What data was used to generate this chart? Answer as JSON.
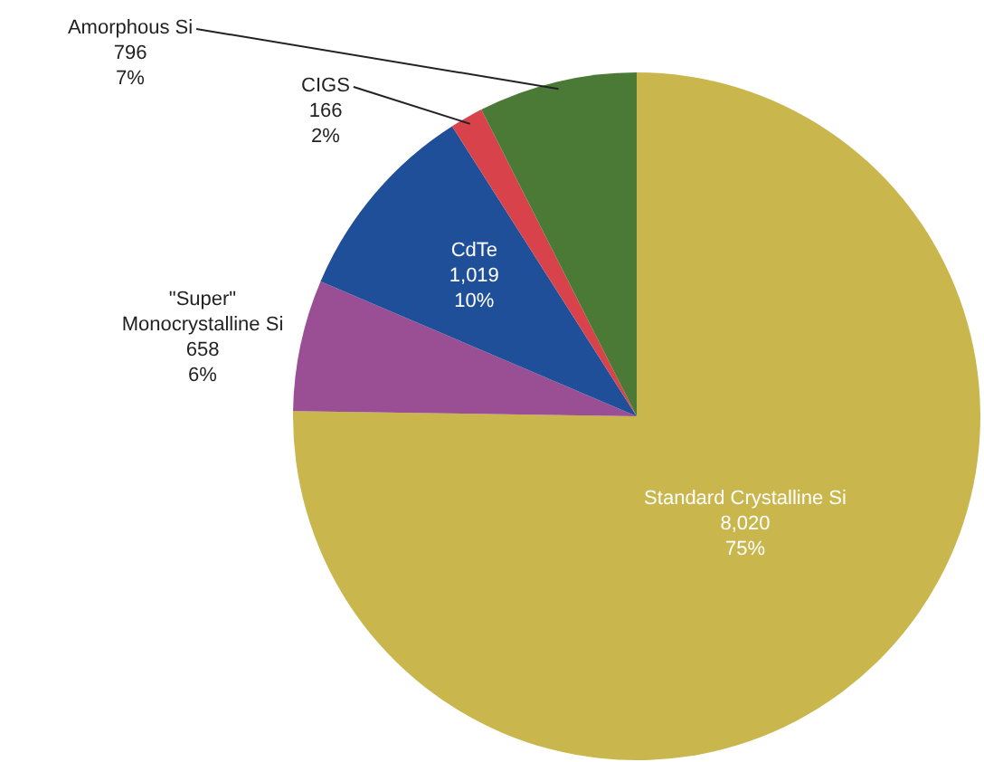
{
  "chart_data": {
    "type": "pie",
    "categories": [
      "Standard Crystalline Si",
      "\"Super\" Monocrystalline Si",
      "CdTe",
      "CIGS",
      "Amorphous Si"
    ],
    "values": [
      8020,
      658,
      1019,
      166,
      796
    ],
    "colors": [
      "#c9b64c",
      "#9a4f95",
      "#1f4f98",
      "#d8424b",
      "#4b7a36"
    ],
    "value_labels": [
      "8,020\n75%",
      "658\n6%",
      "1,019\n10%",
      "166\n2%",
      "796\n7%"
    ],
    "legend": false
  }
}
